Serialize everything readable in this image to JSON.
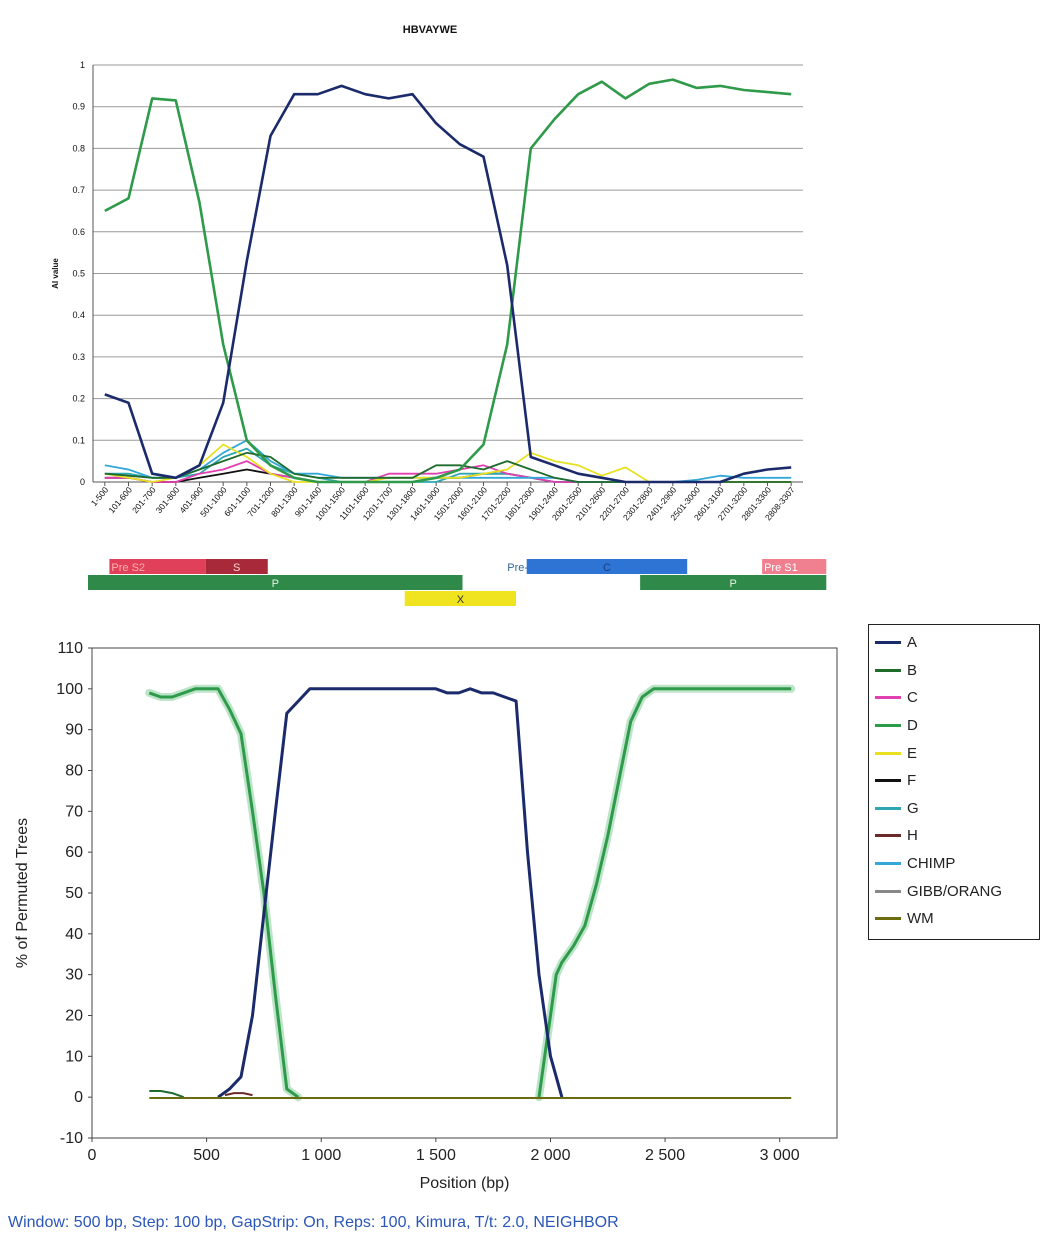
{
  "colors": {
    "A": "#1b2a6b",
    "B": "#1e6b2c",
    "C": "#e040b0",
    "D": "#2e9a4a",
    "E": "#e8e020",
    "F": "#111111",
    "G": "#2ea7b0",
    "H": "#6b2a2a",
    "CHIMP": "#33a8d8",
    "GIBB/ORANG": "#888888",
    "WM": "#6b6b10"
  },
  "chart_data": [
    {
      "type": "line",
      "title": "HBVAYWE",
      "xlabel": "",
      "ylabel": "AI value",
      "ylim": [
        0,
        1
      ],
      "yticks": [
        "0",
        "0.1",
        "0.2",
        "0.3",
        "0.4",
        "0.5",
        "0.6",
        "0.7",
        "0.8",
        "0.9",
        "1"
      ],
      "grid": true,
      "categories": [
        "1-500",
        "101-600",
        "201-700",
        "301-800",
        "401-900",
        "501-1000",
        "601-1100",
        "701-1200",
        "801-1300",
        "901-1400",
        "1001-1500",
        "1101-1600",
        "1201-1700",
        "1301-1800",
        "1401-1900",
        "1501-2000",
        "1601-2100",
        "1701-2200",
        "1801-2300",
        "1901-2400",
        "2001-2500",
        "2101-2600",
        "2201-2700",
        "2301-2800",
        "2401-2900",
        "2501-3000",
        "2601-3100",
        "2701-3200",
        "2801-3300",
        "2808-3307"
      ],
      "series": [
        {
          "key": "A",
          "values": [
            0.21,
            0.19,
            0.02,
            0.01,
            0.04,
            0.19,
            0.53,
            0.83,
            0.93,
            0.93,
            0.95,
            0.93,
            0.92,
            0.93,
            0.86,
            0.81,
            0.78,
            0.52,
            0.06,
            0.04,
            0.02,
            0.01,
            0.0,
            0.0,
            0.0,
            0.0,
            0.0,
            0.02,
            0.03,
            0.035
          ]
        },
        {
          "key": "D",
          "values": [
            0.65,
            0.68,
            0.92,
            0.915,
            0.67,
            0.33,
            0.1,
            0.04,
            0.01,
            0.0,
            0.0,
            0.0,
            0.0,
            0.0,
            0.01,
            0.03,
            0.09,
            0.33,
            0.8,
            0.87,
            0.93,
            0.96,
            0.92,
            0.955,
            0.965,
            0.945,
            0.95,
            0.94,
            0.935,
            0.93
          ]
        },
        {
          "key": "B",
          "values": [
            0.02,
            0.015,
            0.01,
            0.01,
            0.03,
            0.05,
            0.07,
            0.06,
            0.02,
            0.01,
            0.01,
            0.01,
            0.01,
            0.01,
            0.04,
            0.04,
            0.03,
            0.05,
            0.03,
            0.01,
            0.0,
            0.0,
            0.0,
            0.0,
            0.0,
            0.0,
            0.0,
            0.0,
            0.0,
            0.0
          ]
        },
        {
          "key": "E",
          "values": [
            0.02,
            0.01,
            0.0,
            0.01,
            0.04,
            0.09,
            0.06,
            0.02,
            0.0,
            0.0,
            0.0,
            0.0,
            0.01,
            0.01,
            0.01,
            0.01,
            0.02,
            0.03,
            0.07,
            0.05,
            0.04,
            0.015,
            0.035,
            0.0,
            0.0,
            0.0,
            0.0,
            0.0,
            0.0,
            0.0
          ]
        },
        {
          "key": "CHIMP",
          "values": [
            0.04,
            0.03,
            0.01,
            0.01,
            0.03,
            0.07,
            0.1,
            0.05,
            0.02,
            0.02,
            0.01,
            0.01,
            0.01,
            0.01,
            0.01,
            0.01,
            0.01,
            0.01,
            0.01,
            0.01,
            0.0,
            0.0,
            0.0,
            0.0,
            0.0,
            0.005,
            0.015,
            0.01,
            0.01,
            0.01
          ]
        },
        {
          "key": "C",
          "values": [
            0.01,
            0.01,
            0.0,
            0.0,
            0.02,
            0.03,
            0.05,
            0.02,
            0.01,
            0.0,
            0.0,
            0.0,
            0.02,
            0.02,
            0.02,
            0.03,
            0.04,
            0.02,
            0.01,
            0.0,
            0.0,
            0.0,
            0.0,
            0.0,
            0.0,
            0.0,
            0.0,
            0.0,
            0.0,
            0.0
          ]
        },
        {
          "key": "G",
          "values": [
            0.02,
            0.02,
            0.01,
            0.01,
            0.02,
            0.06,
            0.08,
            0.04,
            0.02,
            0.01,
            0.0,
            0.0,
            0.0,
            0.0,
            0.0,
            0.02,
            0.02,
            0.02,
            0.01,
            0.0,
            0.0,
            0.0,
            0.0,
            0.0,
            0.0,
            0.0,
            0.0,
            0.0,
            0.0,
            0.0
          ]
        },
        {
          "key": "F",
          "values": [
            0.01,
            0.01,
            0.0,
            0.0,
            0.01,
            0.02,
            0.03,
            0.02,
            0.01,
            0.0,
            0.0,
            0.0,
            0.0,
            0.0,
            0.01,
            0.01,
            0.02,
            0.02,
            0.01,
            0.0,
            0.0,
            0.0,
            0.0,
            0.0,
            0.0,
            0.0,
            0.0,
            0.0,
            0.0,
            0.0
          ]
        }
      ]
    },
    {
      "type": "line",
      "xlabel": "Position (bp)",
      "ylabel": "% of Permuted Trees",
      "xlim": [
        0,
        3250
      ],
      "ylim": [
        -10,
        110
      ],
      "xticks": [
        {
          "v": 0,
          "t": "0"
        },
        {
          "v": 500,
          "t": "500"
        },
        {
          "v": 1000,
          "t": "1 000"
        },
        {
          "v": 1500,
          "t": "1 500"
        },
        {
          "v": 2000,
          "t": "2 000"
        },
        {
          "v": 2500,
          "t": "2 500"
        },
        {
          "v": 3000,
          "t": "3 000"
        }
      ],
      "yticks": [
        -10,
        0,
        10,
        20,
        30,
        40,
        50,
        60,
        70,
        80,
        90,
        100,
        110
      ],
      "legend_position": "right",
      "series": [
        {
          "key": "D",
          "x": [
            250,
            300,
            350,
            400,
            450,
            500,
            550,
            600,
            650,
            700,
            750,
            800,
            850,
            900
          ],
          "y": [
            99,
            98,
            98,
            99,
            100,
            100,
            100,
            95,
            89,
            70,
            50,
            25,
            2,
            0
          ]
        },
        {
          "key": "D",
          "x": [
            1950,
            1975,
            2000,
            2025,
            2050,
            2100,
            2150,
            2200,
            2250,
            2300,
            2350,
            2400,
            2450,
            2500,
            2600,
            2700,
            2800,
            2900,
            3000,
            3050
          ],
          "y": [
            0,
            10,
            20,
            30,
            33,
            37,
            42,
            52,
            64,
            78,
            92,
            98,
            100,
            100,
            100,
            100,
            100,
            100,
            100,
            100
          ]
        },
        {
          "key": "A",
          "x": [
            550,
            600,
            650,
            700,
            750,
            800,
            850,
            900,
            950,
            1000,
            1100,
            1200,
            1300,
            1400,
            1500,
            1550,
            1600,
            1650,
            1700,
            1750,
            1800,
            1850,
            1900,
            1950,
            2000,
            2050
          ],
          "y": [
            0,
            2,
            5,
            20,
            45,
            70,
            94,
            97,
            100,
            100,
            100,
            100,
            100,
            100,
            100,
            99,
            99,
            100,
            99,
            99,
            98,
            97,
            60,
            30,
            10,
            0
          ]
        },
        {
          "key": "B",
          "x": [
            250,
            300,
            350,
            400
          ],
          "y": [
            1.5,
            1.5,
            1,
            0
          ]
        },
        {
          "key": "H",
          "x": [
            580,
            620,
            660,
            700
          ],
          "y": [
            0.5,
            1,
            1,
            0.5
          ]
        },
        {
          "key": "WM",
          "x": [
            250,
            3050
          ],
          "y": [
            -0.2,
            -0.2
          ]
        }
      ],
      "legend": [
        "A",
        "B",
        "C",
        "D",
        "E",
        "F",
        "G",
        "H",
        "CHIMP",
        "GIBB/ORANG",
        "WM"
      ]
    }
  ],
  "genome_map": [
    {
      "label": "Pre S2",
      "color": "#e0405a",
      "text_color": "#ffb0b0",
      "start": 1,
      "end": 5.5,
      "row": 0
    },
    {
      "label": "S",
      "color": "#a82a3a",
      "text_color": "#ffd0d0",
      "start": 5.5,
      "end": 8.4,
      "row": 0
    },
    {
      "label": "P",
      "color": "#2f8a4a",
      "text_color": "#e8f0e8",
      "start": 0,
      "end": 17.5,
      "row": 1
    },
    {
      "label": "X",
      "color": "#f0e420",
      "text_color": "#333333",
      "start": 14.8,
      "end": 20.0,
      "row": 2
    },
    {
      "label": "Pre- C",
      "color": "#ffffff",
      "text_color": "#336699",
      "start": 19.5,
      "end": 20.5,
      "row": 0
    },
    {
      "label": "C",
      "color": "#2d74d4",
      "text_color": "#1a3f80",
      "start": 20.5,
      "end": 28.0,
      "row": 0
    },
    {
      "label": "Pre S1",
      "color": "#f08090",
      "text_color": "#ffffff",
      "start": 31.5,
      "end": 34.5,
      "row": 0
    },
    {
      "label": "P",
      "color": "#2f8a4a",
      "text_color": "#e8f0e8",
      "start": 25.8,
      "end": 34.5,
      "row": 1
    }
  ],
  "footer": "Window: 500 bp, Step: 100 bp, GapStrip: On, Reps: 100, Kimura, T/t: 2.0, NEIGHBOR"
}
